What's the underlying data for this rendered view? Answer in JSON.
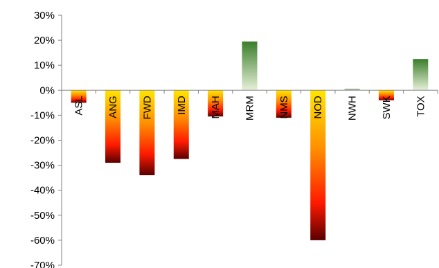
{
  "chart_data": {
    "type": "bar",
    "title": "",
    "xlabel": "",
    "ylabel": "",
    "categories": [
      "ASL",
      "ANG",
      "FWD",
      "IMD",
      "MAH",
      "MRM",
      "NMS",
      "NOD",
      "NWH",
      "SWK",
      "TOX"
    ],
    "values": [
      -5,
      -29,
      -34,
      -27.5,
      -10.5,
      19.5,
      -11,
      -60,
      0.5,
      -4,
      12.5
    ],
    "ylim": [
      -70,
      30
    ],
    "yticks": [
      30,
      20,
      10,
      0,
      -10,
      -20,
      -30,
      -40,
      -50,
      -60,
      -70
    ],
    "ytick_labels": [
      "30%",
      "20%",
      "10%",
      "0%",
      "-10%",
      "-20%",
      "-30%",
      "-40%",
      "-50%",
      "-60%",
      "-70%"
    ],
    "grid": false,
    "legend": "none",
    "colors": {
      "negative_gradient": [
        "#ffe600",
        "#ff8c00",
        "#ff1a00",
        "#5a0000"
      ],
      "positive_gradient": [
        "#e6f0d8",
        "#3a7d2a"
      ],
      "axis": "#808080"
    }
  }
}
